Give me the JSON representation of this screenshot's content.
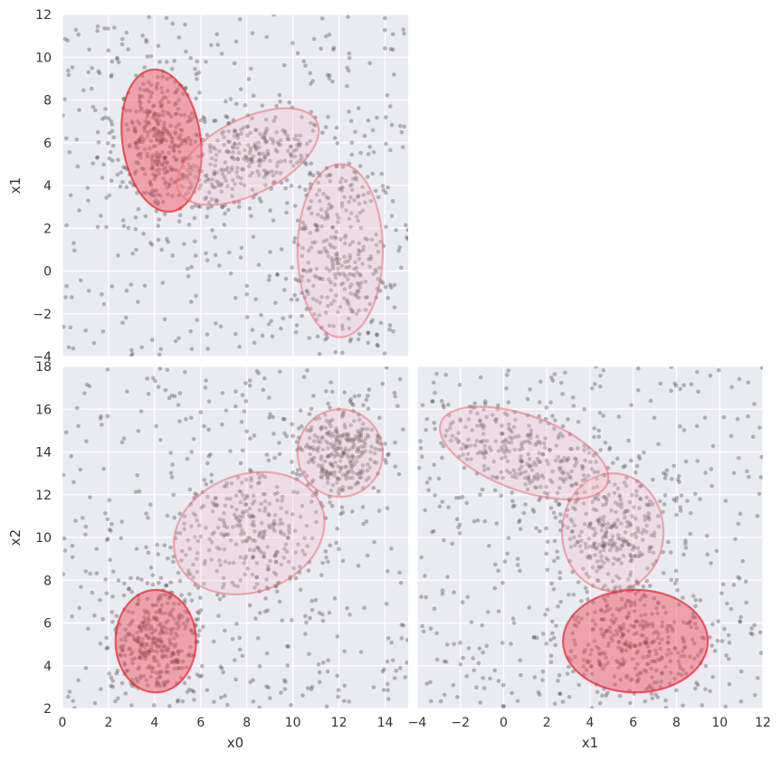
{
  "chart_data": [
    {
      "type": "scatter",
      "panel": "x1 vs x0",
      "xlabel": "",
      "ylabel": "x1",
      "xlim": [
        0,
        15
      ],
      "ylim": [
        -4,
        12
      ],
      "xticks": [],
      "yticks": [
        -4,
        -2,
        0,
        2,
        4,
        6,
        8,
        10,
        12
      ],
      "grid": true,
      "point_color": "#333333",
      "ellipses": [
        {
          "cx": 4.3,
          "cy": 6.1,
          "rx": 1.7,
          "ry": 3.35,
          "angle": 8,
          "strength": "strong"
        },
        {
          "cx": 8.05,
          "cy": 5.35,
          "rx": 3.35,
          "ry": 1.75,
          "angle": 27,
          "strength": "light"
        },
        {
          "cx": 12.05,
          "cy": 0.95,
          "rx": 1.85,
          "ry": 4.05,
          "angle": 0,
          "strength": "light"
        }
      ]
    },
    {
      "type": "scatter",
      "panel": "x2 vs x0",
      "xlabel": "x0",
      "ylabel": "x2",
      "xlim": [
        0,
        15
      ],
      "ylim": [
        2,
        18
      ],
      "xticks": [
        0,
        2,
        4,
        6,
        8,
        10,
        12,
        14
      ],
      "yticks": [
        2,
        4,
        6,
        8,
        10,
        12,
        14,
        16,
        18
      ],
      "grid": true,
      "point_color": "#333333",
      "ellipses": [
        {
          "cx": 4.05,
          "cy": 5.15,
          "rx": 1.75,
          "ry": 2.4,
          "angle": 0,
          "strength": "strong"
        },
        {
          "cx": 8.1,
          "cy": 10.2,
          "rx": 3.35,
          "ry": 2.75,
          "angle": 20,
          "strength": "light"
        },
        {
          "cx": 12.05,
          "cy": 13.95,
          "rx": 1.85,
          "ry": 2.05,
          "angle": 0,
          "strength": "light"
        }
      ]
    },
    {
      "type": "scatter",
      "panel": "x2 vs x1",
      "xlabel": "x1",
      "ylabel": "",
      "xlim": [
        -4,
        12
      ],
      "ylim": [
        2,
        18
      ],
      "xticks": [
        -4,
        -2,
        0,
        2,
        4,
        6,
        8,
        10,
        12
      ],
      "yticks": [],
      "grid": true,
      "point_color": "#333333",
      "ellipses": [
        {
          "cx": 6.1,
          "cy": 5.15,
          "rx": 3.35,
          "ry": 2.4,
          "angle": 0,
          "strength": "strong"
        },
        {
          "cx": 5.05,
          "cy": 10.25,
          "rx": 2.35,
          "ry": 2.75,
          "angle": 0,
          "strength": "light"
        },
        {
          "cx": 0.95,
          "cy": 13.95,
          "rx": 4.1,
          "ry": 1.75,
          "angle": -20,
          "strength": "light"
        }
      ]
    }
  ]
}
